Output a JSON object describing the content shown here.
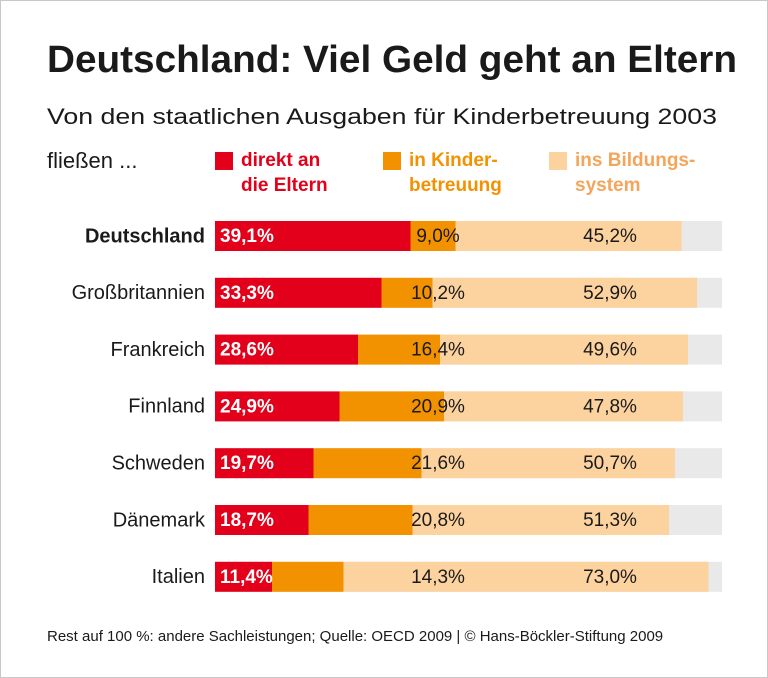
{
  "chart_data": {
    "type": "stacked-bar-horizontal",
    "title": "Deutschland: Viel Geld geht an Eltern",
    "subtitle": [
      "Von den staatlichen Ausgaben für Kinderbetreuung 2003",
      "fließen ..."
    ],
    "categories": [
      "Deutschland",
      "Großbritannien",
      "Frankreich",
      "Finnland",
      "Schweden",
      "Dänemark",
      "Italien"
    ],
    "highlight_category": 0,
    "series": [
      {
        "name": "direkt an\ndie Eltern",
        "color": "#e2001a",
        "values": [
          39.1,
          33.3,
          28.6,
          24.9,
          19.7,
          18.7,
          11.4
        ],
        "value_labels": [
          "39,1%",
          "33,3%",
          "28,6%",
          "24,9%",
          "19,7%",
          "18,7%",
          "11,4%"
        ]
      },
      {
        "name": "in Kinder-\nbetreuung",
        "color": "#f39200",
        "values": [
          9.0,
          10.2,
          16.4,
          20.9,
          21.6,
          20.8,
          14.3
        ],
        "value_labels": [
          "9,0%",
          "10,2%",
          "16,4%",
          "20,9%",
          "21,6%",
          "20,8%",
          "14,3%"
        ]
      },
      {
        "name": "ins Bildungs-\nsystem",
        "color": "#fcd29f",
        "values": [
          45.2,
          52.9,
          49.6,
          47.8,
          50.7,
          51.3,
          73.0
        ],
        "value_labels": [
          "45,2%",
          "52,9%",
          "49,6%",
          "47,8%",
          "50,7%",
          "51,3%",
          "73,0%"
        ]
      }
    ],
    "xlim": [
      0,
      100
    ],
    "footnote": "Rest auf 100 %: andere Sachleistungen; Quelle: OECD 2009 | © Hans-Böckler-Stiftung 2009"
  }
}
